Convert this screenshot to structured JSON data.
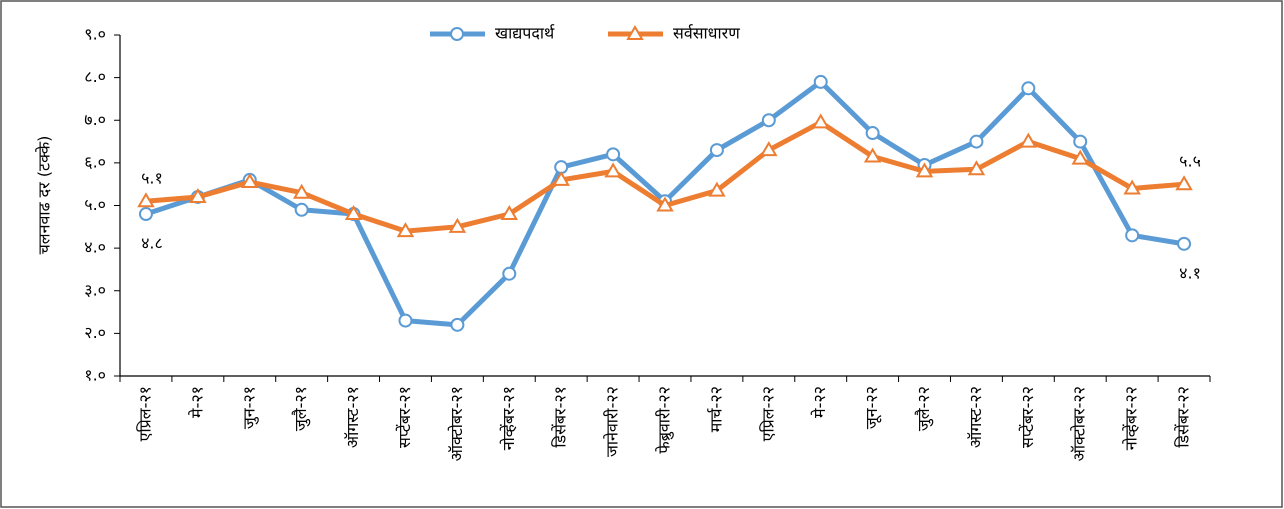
{
  "chart_data": {
    "type": "line",
    "y_label": "चलनवाढ दर (टक्के)",
    "categories": [
      "एप्रिल-२१",
      "मे-२१",
      "जुन-२१",
      "जुलै-२१",
      "ऑगस्ट-२१",
      "सप्टेंबर-२१",
      "ऑक्टोबर-२१",
      "नोव्हेंबर-२१",
      "डिसेंबर-२१",
      "जानेवारी-२२",
      "फेब्रुवारी-२२",
      "मार्च-२२",
      "एप्रिल-२२",
      "मे-२२",
      "जून-२२",
      "जुलै-२२",
      "ऑगस्ट-२२",
      "सप्टेंबर-२२",
      "ऑक्टोबर-२२",
      "नोव्हेंबर-२२",
      "डिसेंबर-२२"
    ],
    "series": [
      {
        "name": "खाद्यपदार्थ",
        "color": "#5b9bd5",
        "marker": "circle",
        "values": [
          4.8,
          5.2,
          5.6,
          4.9,
          4.8,
          2.3,
          2.2,
          3.4,
          5.9,
          6.2,
          5.1,
          6.3,
          7.0,
          7.9,
          6.7,
          5.95,
          6.5,
          7.75,
          6.5,
          4.3,
          4.1
        ],
        "value_labels": [
          "४.८",
          null,
          null,
          null,
          null,
          null,
          null,
          null,
          null,
          null,
          null,
          null,
          null,
          null,
          null,
          null,
          null,
          null,
          null,
          null,
          "४.१"
        ]
      },
      {
        "name": "सर्वसाधारण",
        "color": "#ed7d31",
        "marker": "triangle",
        "values": [
          5.1,
          5.2,
          5.55,
          5.3,
          4.8,
          4.4,
          4.5,
          4.8,
          5.6,
          5.8,
          5.0,
          5.35,
          6.3,
          6.95,
          6.15,
          5.8,
          5.85,
          6.5,
          6.1,
          5.4,
          5.5
        ],
        "value_labels": [
          "५.१",
          null,
          null,
          null,
          null,
          null,
          null,
          null,
          null,
          null,
          null,
          null,
          null,
          null,
          null,
          null,
          null,
          null,
          null,
          null,
          "५.५"
        ]
      }
    ],
    "ylim": [
      1,
      9
    ],
    "yticks": [
      {
        "value": 1,
        "label": "१.०"
      },
      {
        "value": 2,
        "label": "२.०"
      },
      {
        "value": 3,
        "label": "३.०"
      },
      {
        "value": 4,
        "label": "४.०"
      },
      {
        "value": 5,
        "label": "५.०"
      },
      {
        "value": 6,
        "label": "६.०"
      },
      {
        "value": 7,
        "label": "७.०"
      },
      {
        "value": 8,
        "label": "८.०"
      },
      {
        "value": 9,
        "label": "९.०"
      }
    ],
    "grid": false,
    "legend": "top"
  }
}
